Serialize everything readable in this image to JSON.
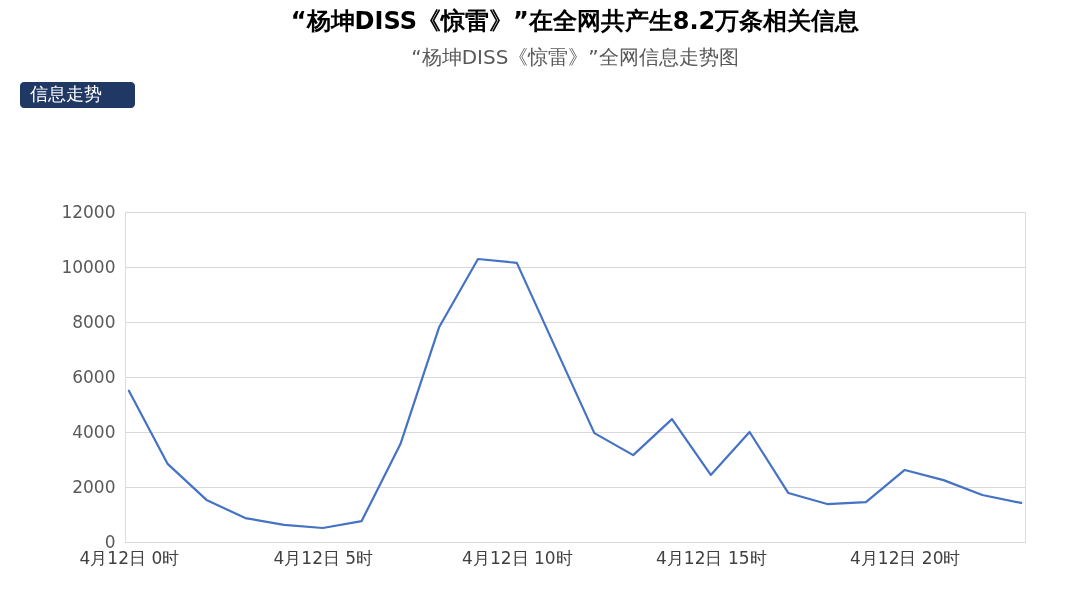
{
  "chart_data": {
    "type": "line",
    "title": "“杨坤DISS《惊雷》”在全网共产生8.2万条相关信息",
    "subtitle": "“杨坤DISS《惊雷》”全网信息走势图",
    "annotations": [
      "信息走势"
    ],
    "categories": [
      "4月12日 0时",
      null,
      null,
      null,
      null,
      "4月12日 5时",
      null,
      null,
      null,
      null,
      "4月12日 10时",
      null,
      null,
      null,
      null,
      "4月12日 15时",
      null,
      null,
      null,
      null,
      "4月12日 20时",
      null,
      null,
      null
    ],
    "series": [
      {
        "color": "#4472c4",
        "values": [
          5500,
          2840,
          1530,
          870,
          620,
          510,
          760,
          3560,
          7820,
          10290,
          10150,
          7050,
          3960,
          3160,
          4470,
          2440,
          4000,
          1780,
          1380,
          1450,
          2620,
          2250,
          1710,
          1420
        ]
      }
    ],
    "ylim": [
      0,
      12000
    ],
    "yticks": [
      0,
      2000,
      4000,
      6000,
      8000,
      10000,
      12000
    ],
    "grid": "y",
    "marker": "none",
    "line_style": "solid"
  }
}
